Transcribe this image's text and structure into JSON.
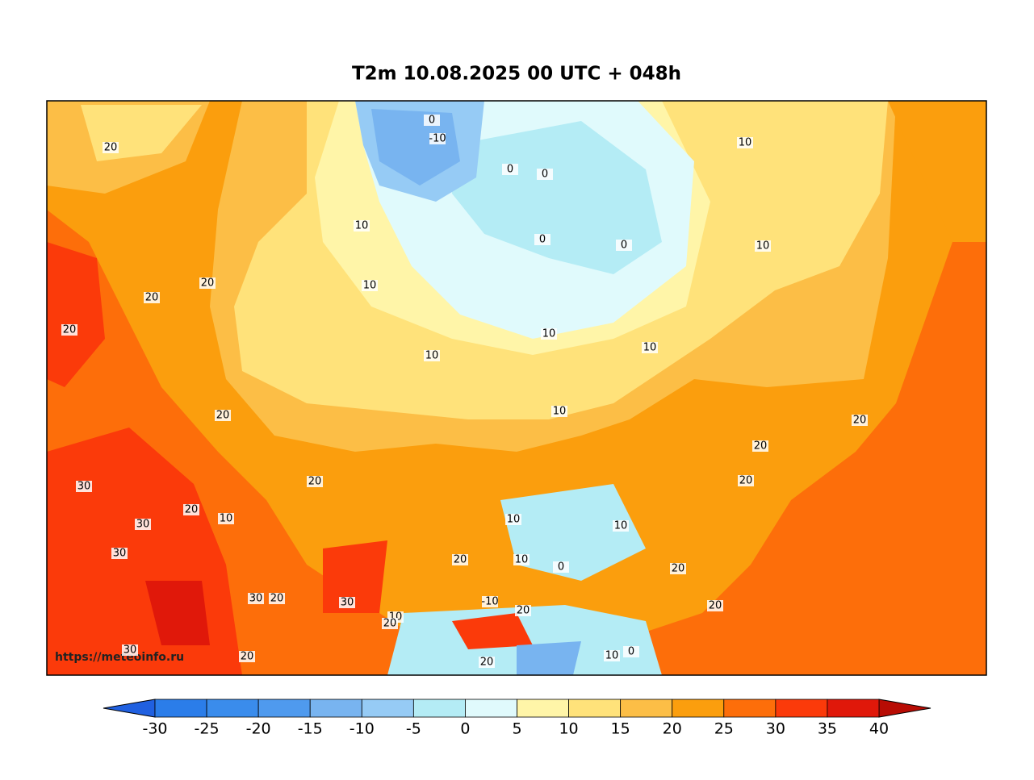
{
  "title": "T2m 10.08.2025 00 UTC + 048h",
  "watermark": "https://meteoinfo.ru",
  "contour_labels": [
    20,
    10,
    -10,
    0,
    0,
    0,
    0,
    0,
    10,
    10,
    20,
    20,
    20,
    10,
    10,
    10,
    10,
    10,
    20,
    20,
    20,
    20,
    10,
    10,
    10,
    20,
    30,
    20,
    10,
    30,
    30,
    30,
    20,
    30,
    10,
    -10,
    20,
    20,
    20,
    20,
    0,
    10,
    20,
    30,
    20,
    0,
    20
  ],
  "colorbar": {
    "ticks": [
      -30,
      -25,
      -20,
      -15,
      -10,
      -5,
      0,
      5,
      10,
      15,
      20,
      25,
      30,
      35,
      40
    ],
    "colors": [
      "#2b7de9",
      "#3a8cec",
      "#4f9aee",
      "#78b4f0",
      "#96cbf5",
      "#b4ecf5",
      "#e0fafc",
      "#fff5a8",
      "#ffe27a",
      "#fcbe46",
      "#fb9e0d",
      "#fd6e0a",
      "#fb3a0a",
      "#e0180a"
    ],
    "under_color": "#2060e0",
    "over_color": "#b80c04"
  }
}
